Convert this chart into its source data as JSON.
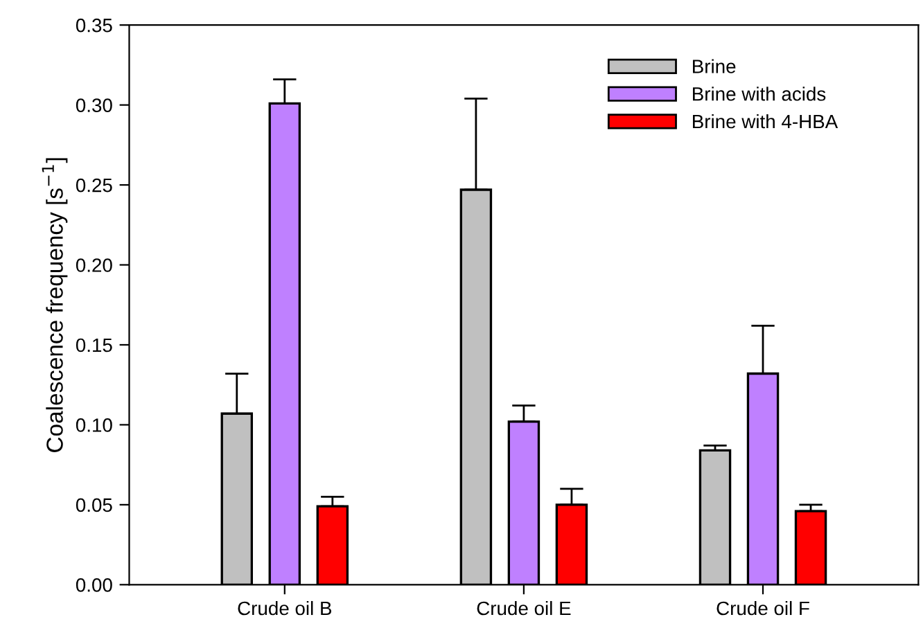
{
  "chart_data": {
    "type": "bar",
    "ylabel": "Coalescence frequency [s$^{−1}$]",
    "categories": [
      "Crude oil B",
      "Crude oil E",
      "Crude oil F"
    ],
    "series": [
      {
        "name": "Brine",
        "color": "#c0c0c0",
        "values": [
          0.107,
          0.247,
          0.084
        ],
        "errors": [
          [
            0.107,
            0.132
          ],
          [
            0.247,
            0.304
          ],
          [
            0.084,
            0.087
          ]
        ]
      },
      {
        "name": "Brine with acids",
        "color": "#bf80ff",
        "values": [
          0.301,
          0.102,
          0.132
        ],
        "errors": [
          [
            0.301,
            0.316
          ],
          [
            0.102,
            0.112
          ],
          [
            0.132,
            0.162
          ]
        ]
      },
      {
        "name": "Brine with 4-HBA",
        "color": "#ff0000",
        "values": [
          0.049,
          0.05,
          0.046
        ],
        "errors": [
          [
            0.049,
            0.055
          ],
          [
            0.05,
            0.06
          ],
          [
            0.046,
            0.05
          ]
        ]
      }
    ],
    "ylim": [
      0,
      0.35
    ],
    "yticks": [
      {
        "value": 0,
        "label": "0.00"
      },
      {
        "value": 0.05,
        "label": "0.05"
      },
      {
        "value": 0.1,
        "label": "0.10"
      },
      {
        "value": 0.15,
        "label": "0.15"
      },
      {
        "value": 0.2,
        "label": "0.20"
      },
      {
        "value": 0.25,
        "label": "0.25"
      },
      {
        "value": 0.3,
        "label": "0.30"
      },
      {
        "value": 0.35,
        "label": "0.35"
      }
    ],
    "grid": false,
    "legend": "top right"
  }
}
